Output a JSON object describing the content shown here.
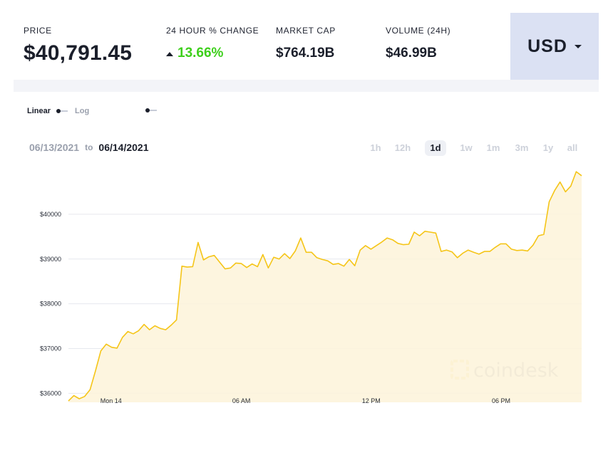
{
  "stats": {
    "price": {
      "label": "PRICE",
      "value": "$40,791.45"
    },
    "change": {
      "label": "24 HOUR % CHANGE",
      "value": "13.66%"
    },
    "market_cap": {
      "label": "MARKET CAP",
      "value": "$764.19B"
    },
    "volume": {
      "label": "VOLUME (24H)",
      "value": "$46.99B"
    }
  },
  "currency": {
    "label": "USD"
  },
  "scale": {
    "linear_label": "Linear",
    "log_label": "Log"
  },
  "date_range": {
    "from": "06/13/2021",
    "to_word": "to",
    "to": "06/14/2021"
  },
  "ranges": [
    {
      "label": "1h",
      "active": false
    },
    {
      "label": "12h",
      "active": false
    },
    {
      "label": "1d",
      "active": true
    },
    {
      "label": "1w",
      "active": false
    },
    {
      "label": "1m",
      "active": false
    },
    {
      "label": "3m",
      "active": false
    },
    {
      "label": "1y",
      "active": false
    },
    {
      "label": "all",
      "active": false
    }
  ],
  "watermark": "coindesk",
  "colors": {
    "accent_up": "#3ecf1c",
    "line": "#f5c518",
    "area": "#fdf3d9",
    "currency_bg": "#dbe1f3"
  },
  "chart_data": {
    "type": "area",
    "title": "",
    "xlabel": "",
    "ylabel": "",
    "x_ticks": [
      "Mon 14",
      "06 AM",
      "12 PM",
      "06 PM"
    ],
    "y_ticks": [
      "$36000",
      "$37000",
      "$38000",
      "$39000",
      "$40000"
    ],
    "ylim": [
      35800,
      41000
    ],
    "series": [
      {
        "values": [
          35830,
          35950,
          35880,
          35930,
          36080,
          36500,
          36950,
          37100,
          37030,
          37010,
          37250,
          37380,
          37330,
          37400,
          37540,
          37420,
          37510,
          37450,
          37420,
          37520,
          37640,
          38840,
          38820,
          38830,
          39370,
          38980,
          39050,
          39080,
          38930,
          38780,
          38800,
          38910,
          38900,
          38810,
          38890,
          38830,
          39100,
          38800,
          39040,
          39000,
          39120,
          39010,
          39180,
          39470,
          39150,
          39150,
          39030,
          38990,
          38960,
          38880,
          38900,
          38840,
          38990,
          38850,
          39200,
          39300,
          39220,
          39300,
          39380,
          39470,
          39430,
          39350,
          39320,
          39330,
          39600,
          39520,
          39620,
          39600,
          39580,
          39170,
          39200,
          39160,
          39030,
          39130,
          39200,
          39150,
          39110,
          39170,
          39170,
          39260,
          39340,
          39340,
          39220,
          39190,
          39200,
          39180,
          39310,
          39520,
          39550,
          40280,
          40530,
          40720,
          40500,
          40630,
          40950,
          40860
        ]
      }
    ],
    "grid": "horizontal"
  }
}
